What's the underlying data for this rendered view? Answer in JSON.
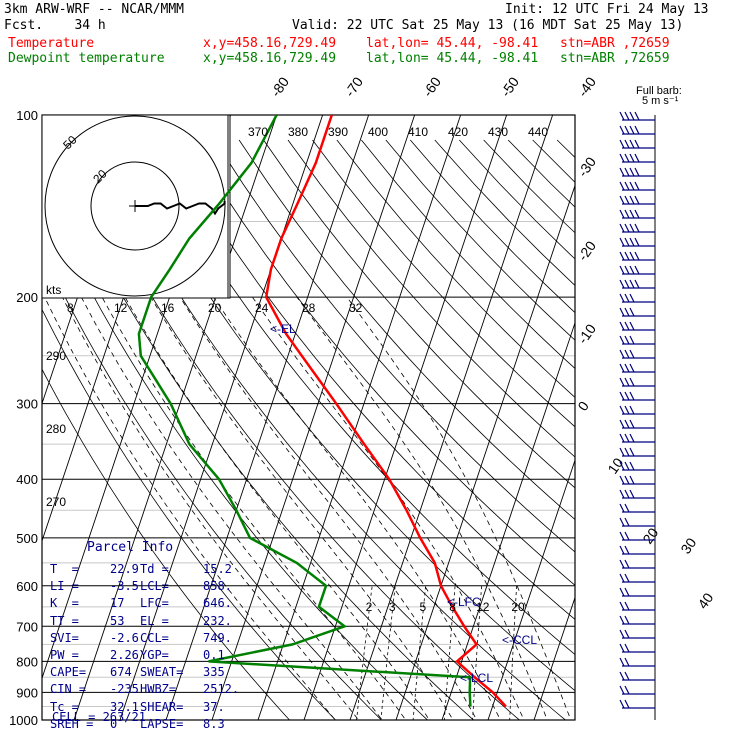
{
  "header": {
    "model": "3km ARW-WRF -- NCAR/MMM",
    "init": "Init: 12 UTC Fri 24 May 13",
    "fcst": "Fcst.    34 h",
    "valid": "Valid: 22 UTC Sat 25 May 13 (16 MDT Sat 25 May 13)",
    "temp_label": "Temperature",
    "dew_label": "Dewpoint temperature",
    "coords": "x,y=458.16,729.49",
    "latlon": "lat,lon= 45.44, -98.41",
    "stn": "stn=ABR ,72659"
  },
  "colors": {
    "temperature": "#ff0000",
    "dewpoint": "#008000",
    "parcel": "#00008b",
    "grid": "#000000"
  },
  "chart_data": {
    "type": "line",
    "title": "Skew-T log-P sounding",
    "pressure_ticks": [
      100,
      200,
      300,
      400,
      500,
      600,
      700,
      800,
      900,
      1000
    ],
    "isotherm_labels": [
      -80,
      -70,
      -60,
      -50,
      -40,
      -30,
      -20,
      -10,
      0,
      10,
      20,
      30,
      40
    ],
    "dry_adiabat_labels": [
      370,
      380,
      390,
      400,
      410,
      420,
      430,
      440
    ],
    "inset_dry_adiabat_labels": [
      290,
      280,
      270
    ],
    "mixing_ratio_labels": [
      2,
      3,
      5,
      8,
      12,
      20
    ],
    "speed_labels": [
      "8",
      "12",
      "16",
      "20",
      "24",
      "28",
      "32"
    ],
    "speed_unit": "kts",
    "hodograph_rings": [
      "50",
      "20"
    ],
    "barb_legend": "Full barb:\n5 m s⁻¹",
    "ylabel": "",
    "series": [
      {
        "name": "Temperature",
        "points": [
          [
            100,
            -58
          ],
          [
            120,
            -58
          ],
          [
            140,
            -59
          ],
          [
            160,
            -60
          ],
          [
            180,
            -60
          ],
          [
            200,
            -59
          ],
          [
            230,
            -52
          ],
          [
            250,
            -47
          ],
          [
            300,
            -36
          ],
          [
            350,
            -27
          ],
          [
            400,
            -19
          ],
          [
            450,
            -13
          ],
          [
            500,
            -8
          ],
          [
            550,
            -3
          ],
          [
            600,
            0
          ],
          [
            650,
            4
          ],
          [
            700,
            8
          ],
          [
            750,
            12
          ],
          [
            800,
            9
          ],
          [
            850,
            14
          ],
          [
            900,
            19
          ],
          [
            950,
            22.9
          ]
        ]
      },
      {
        "name": "Dewpoint temperature",
        "points": [
          [
            100,
            -70
          ],
          [
            120,
            -72
          ],
          [
            140,
            -76
          ],
          [
            160,
            -80
          ],
          [
            180,
            -82
          ],
          [
            200,
            -84
          ],
          [
            230,
            -84
          ],
          [
            250,
            -82
          ],
          [
            300,
            -72
          ],
          [
            350,
            -65
          ],
          [
            400,
            -56
          ],
          [
            450,
            -50
          ],
          [
            500,
            -45
          ],
          [
            550,
            -33
          ],
          [
            600,
            -25
          ],
          [
            650,
            -25
          ],
          [
            700,
            -18
          ],
          [
            750,
            -28
          ],
          [
            800,
            -45
          ],
          [
            850,
            13
          ],
          [
            900,
            14
          ],
          [
            950,
            15.2
          ]
        ]
      }
    ],
    "levels_marked": [
      "<-EL",
      "<-LFC",
      "<-CCL",
      "<-LCL"
    ],
    "hodograph_trace": [
      [
        0,
        0
      ],
      [
        4,
        0
      ],
      [
        6,
        -1
      ],
      [
        8,
        -1
      ],
      [
        10,
        1
      ],
      [
        12,
        0
      ],
      [
        14,
        -1
      ],
      [
        16,
        1
      ],
      [
        18,
        0
      ],
      [
        20,
        -1
      ],
      [
        22,
        -1
      ],
      [
        24,
        1
      ],
      [
        25,
        3
      ],
      [
        26,
        1
      ],
      [
        28,
        -1
      ],
      [
        28,
        -2
      ]
    ]
  },
  "parcel": {
    "title": "Parcel Info",
    "rows": [
      {
        "l1": "T  =",
        "v1": "22.9",
        "l2": "Td =",
        "v2": "15.2"
      },
      {
        "l1": "LI =",
        "v1": "-3.5",
        "l2": "LCL=",
        "v2": "858."
      },
      {
        "l1": "K  =",
        "v1": "17",
        "l2": "LFC=",
        "v2": "646."
      },
      {
        "l1": "TT =",
        "v1": "53",
        "l2": "EL =",
        "v2": "232."
      },
      {
        "l1": "SVI=",
        "v1": "-2.6",
        "l2": "CCL=",
        "v2": "749."
      },
      {
        "l1": "PW =",
        "v1": "2.26",
        "l2": "YGP=",
        "v2": "0.1"
      },
      {
        "l1": "CAPE=",
        "v1": "674",
        "l2": "SWEAT=",
        "v2": "335"
      },
      {
        "l1": "CIN =",
        "v1": "-235",
        "l2": "HWBZ=",
        "v2": "2512."
      },
      {
        "l1": "Tc =",
        "v1": "32.1",
        "l2": "SHEAR=",
        "v2": "37."
      },
      {
        "l1": "SREH =",
        "v1": "0",
        "l2": "LAPSE=",
        "v2": "8.3"
      }
    ],
    "cell": "CELL = 263/21"
  }
}
